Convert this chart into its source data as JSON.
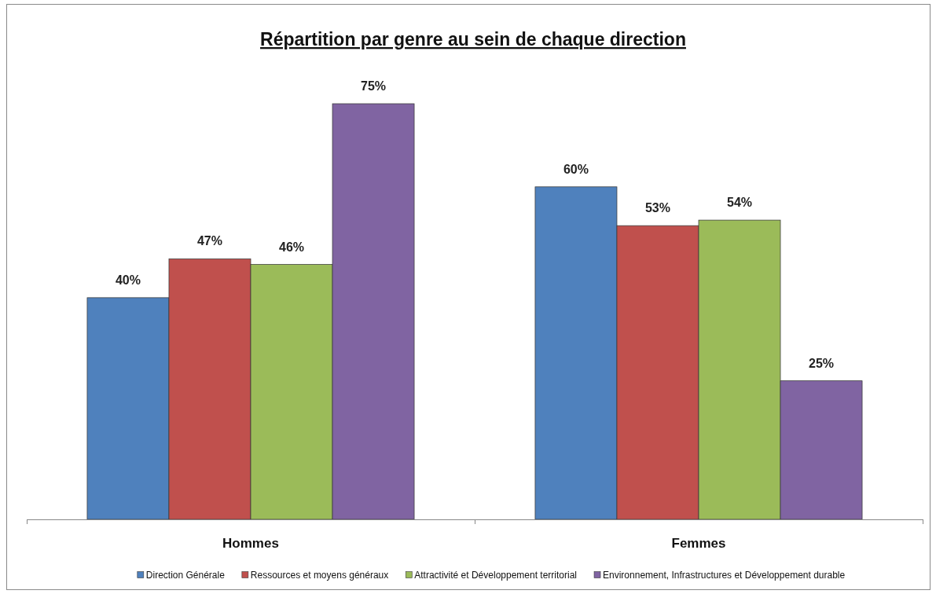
{
  "chart_data": {
    "type": "bar",
    "title": "Répartition par genre au sein de chaque direction",
    "categories": [
      "Hommes",
      "Femmes"
    ],
    "series": [
      {
        "name": "Direction Générale",
        "color": "#4f81bd",
        "values": [
          40,
          60
        ],
        "value_labels": [
          "40%",
          "60%"
        ]
      },
      {
        "name": "Ressources et moyens généraux",
        "color": "#c0504d",
        "values": [
          47,
          53
        ],
        "value_labels": [
          "47%",
          "53%"
        ]
      },
      {
        "name": "Attractivité et Développement territorial",
        "color": "#9bbb59",
        "values": [
          46,
          54
        ],
        "value_labels": [
          "46%",
          "54%"
        ]
      },
      {
        "name": "Environnement, Infrastructures et Développement durable",
        "color": "#8064a2",
        "values": [
          75,
          25
        ],
        "value_labels": [
          "75%",
          "25%"
        ]
      }
    ],
    "legend": "bottom"
  }
}
